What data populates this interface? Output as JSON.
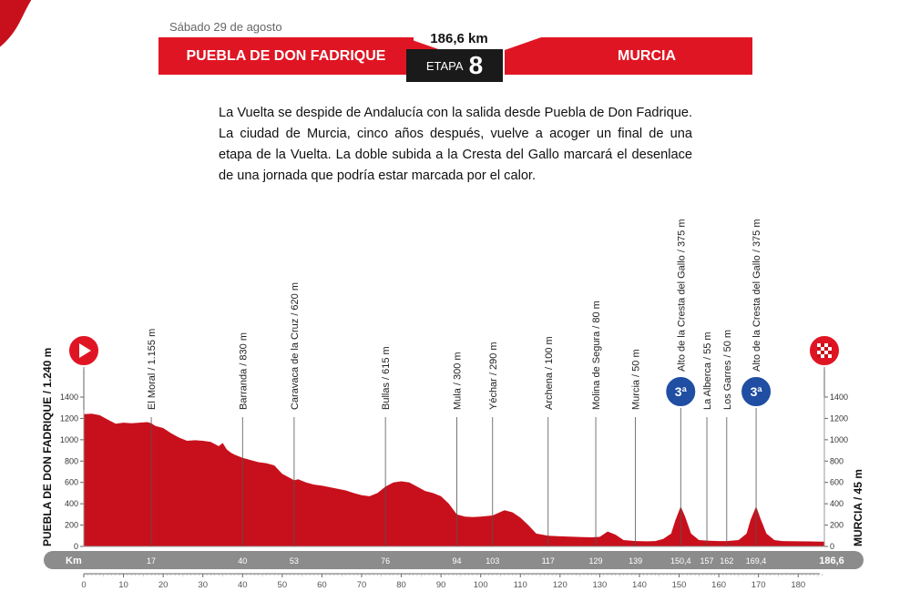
{
  "header": {
    "date": "Sábado 29 de agosto",
    "start": "PUEBLA DE DON FADRIQUE",
    "finish": "MURCIA",
    "distance": "186,6 km",
    "stage_label": "ETAPA",
    "stage_number": "8"
  },
  "intro_text": "La Vuelta se despide de Andalucía con la salida desde Puebla de Don Fadrique. La ciudad de Murcia, cinco años después, vuelve a acoger un final de una etapa de la Vuelta. La doble subida a la Cresta del Gallo marcará el desenlace de una jornada que podría estar marcada por el calor.",
  "colors": {
    "accent": "#e01523",
    "profile": "#c8101c",
    "dark": "#1a1a1a",
    "km_bar": "#8c8c8c"
  },
  "chart_data": {
    "type": "area",
    "title": "",
    "xlabel": "",
    "ylabel": "",
    "xlim": [
      0,
      186.6
    ],
    "ylim": [
      0,
      1400
    ],
    "x_ticks": [
      0,
      10,
      20,
      30,
      40,
      50,
      60,
      70,
      80,
      90,
      100,
      110,
      120,
      130,
      140,
      150,
      160,
      170,
      180
    ],
    "y_ticks": [
      0,
      200,
      400,
      600,
      800,
      1000,
      1200,
      1400
    ],
    "km_bar_label": "Km",
    "start_label": "PUEBLA DE DON FADRIQUE / 1.240 m",
    "end_label": "MURCIA / 45 m",
    "km_markers": [
      "17",
      "40",
      "53",
      "76",
      "94",
      "103",
      "117",
      "129",
      "139",
      "150,4",
      "157",
      "162",
      "169,4",
      "186,6"
    ],
    "waypoints": [
      {
        "km": 17,
        "label": "El Moral / 1.155 m"
      },
      {
        "km": 40,
        "label": "Barranda / 830 m"
      },
      {
        "km": 53,
        "label": "Caravaca de la Cruz / 620 m"
      },
      {
        "km": 76,
        "label": "Bullas / 615 m"
      },
      {
        "km": 94,
        "label": "Mula / 300 m"
      },
      {
        "km": 103,
        "label": "Yéchar / 290 m"
      },
      {
        "km": 117,
        "label": "Archena / 100 m"
      },
      {
        "km": 129,
        "label": "Molina de Segura / 80 m"
      },
      {
        "km": 139,
        "label": "Murcia / 50 m"
      },
      {
        "km": 150.4,
        "label": "Alto de la Cresta del Gallo / 375 m",
        "category": "3ª"
      },
      {
        "km": 157,
        "label": "La Alberca / 55 m"
      },
      {
        "km": 162,
        "label": "Los Garres / 50 m"
      },
      {
        "km": 169.4,
        "label": "Alto de la Cresta del Gallo / 375 m",
        "category": "3ª"
      }
    ],
    "series": [
      {
        "x": [
          0,
          2,
          4,
          6,
          8,
          10,
          12,
          14,
          16,
          17,
          18,
          20,
          22,
          24,
          26,
          28,
          30,
          32,
          34,
          35,
          36,
          37,
          38,
          40,
          42,
          44,
          46,
          48,
          50,
          52,
          53,
          54,
          56,
          58,
          60,
          62,
          64,
          66,
          68,
          70,
          72,
          74,
          76,
          78,
          80,
          82,
          84,
          86,
          88,
          90,
          92,
          94,
          96,
          98,
          100,
          103,
          106,
          108,
          110,
          112,
          114,
          117,
          120,
          124,
          128,
          130,
          132,
          134,
          136,
          139,
          142,
          144,
          146,
          148,
          149,
          150.4,
          151.5,
          153,
          155,
          157,
          160,
          162,
          165,
          167,
          168,
          169.4,
          170.5,
          172,
          174,
          176,
          180,
          184,
          186.6
        ],
        "y": [
          1240,
          1245,
          1230,
          1190,
          1150,
          1160,
          1155,
          1160,
          1165,
          1155,
          1130,
          1110,
          1060,
          1020,
          990,
          995,
          990,
          980,
          940,
          970,
          910,
          880,
          860,
          830,
          810,
          790,
          780,
          760,
          680,
          640,
          620,
          630,
          600,
          580,
          570,
          555,
          540,
          525,
          500,
          480,
          470,
          500,
          560,
          600,
          610,
          600,
          560,
          520,
          500,
          470,
          400,
          300,
          280,
          275,
          280,
          290,
          340,
          320,
          270,
          200,
          120,
          100,
          95,
          90,
          85,
          90,
          140,
          110,
          60,
          50,
          48,
          50,
          70,
          120,
          240,
          375,
          280,
          120,
          60,
          55,
          50,
          50,
          60,
          120,
          250,
          375,
          260,
          120,
          60,
          50,
          48,
          46,
          45
        ]
      }
    ]
  }
}
